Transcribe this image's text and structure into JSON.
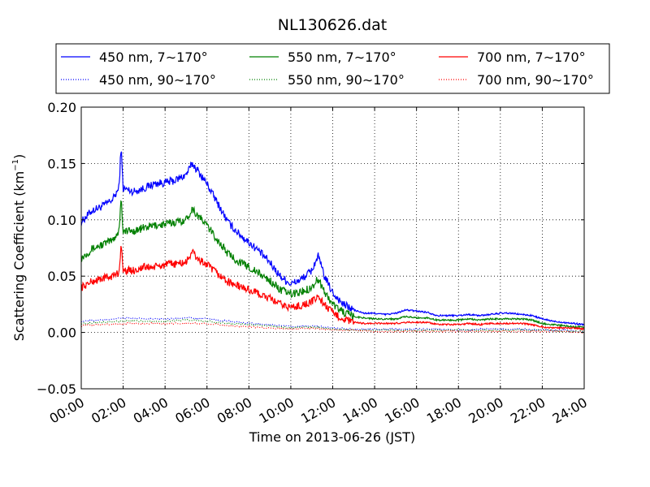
{
  "chart_data": {
    "type": "line",
    "title": "NL130626.dat",
    "xlabel": "Time on 2013-06-26 (JST)",
    "ylabel": "Scattering Coefficient (km",
    "ylabel_sup": "−1",
    "ylabel_close": ")",
    "xlim": [
      0,
      24
    ],
    "ylim": [
      -0.05,
      0.2
    ],
    "grid": true,
    "legend_position": "top",
    "x_tick_labels": [
      "00:00",
      "02:00",
      "04:00",
      "06:00",
      "08:00",
      "10:00",
      "12:00",
      "14:00",
      "16:00",
      "18:00",
      "20:00",
      "22:00",
      "24:00"
    ],
    "y_ticks": [
      -0.05,
      0.0,
      0.05,
      0.1,
      0.15,
      0.2
    ],
    "y_tick_labels": [
      "−0.05",
      "0.00",
      "0.05",
      "0.10",
      "0.15",
      "0.20"
    ],
    "series": [
      {
        "name": "450 nm, 7∼170°",
        "color": "#0000ff",
        "style": "solid",
        "x": [
          0,
          0.5,
          1,
          1.5,
          1.8,
          1.9,
          2,
          2.5,
          3,
          3.5,
          4,
          4.5,
          5,
          5.3,
          5.5,
          6,
          6.5,
          7,
          7.5,
          8,
          8.5,
          9,
          9.5,
          10,
          10.5,
          11,
          11.3,
          11.6,
          12,
          12.5,
          13,
          13.5,
          14,
          14.5,
          15,
          15.5,
          16,
          16.5,
          17,
          17.5,
          18,
          18.5,
          19,
          19.5,
          20,
          20.5,
          21,
          21.5,
          22,
          22.5,
          23,
          23.5,
          24
        ],
        "y": [
          0.098,
          0.108,
          0.112,
          0.118,
          0.128,
          0.165,
          0.128,
          0.125,
          0.128,
          0.132,
          0.133,
          0.135,
          0.14,
          0.15,
          0.145,
          0.132,
          0.115,
          0.098,
          0.088,
          0.08,
          0.072,
          0.062,
          0.05,
          0.043,
          0.047,
          0.055,
          0.068,
          0.05,
          0.035,
          0.025,
          0.02,
          0.017,
          0.017,
          0.016,
          0.017,
          0.02,
          0.019,
          0.018,
          0.015,
          0.015,
          0.015,
          0.016,
          0.015,
          0.016,
          0.017,
          0.017,
          0.016,
          0.015,
          0.012,
          0.01,
          0.009,
          0.008,
          0.007
        ]
      },
      {
        "name": "550 nm, 7∼170°",
        "color": "#008000",
        "style": "solid",
        "x": [
          0,
          0.5,
          1,
          1.5,
          1.8,
          1.9,
          2,
          2.5,
          3,
          3.5,
          4,
          4.5,
          5,
          5.3,
          5.5,
          6,
          6.5,
          7,
          7.5,
          8,
          8.5,
          9,
          9.5,
          10,
          10.5,
          11,
          11.3,
          11.6,
          12,
          12.5,
          13,
          13.5,
          14,
          14.5,
          15,
          15.5,
          16,
          16.5,
          17,
          17.5,
          18,
          18.5,
          19,
          19.5,
          20,
          20.5,
          21,
          21.5,
          22,
          22.5,
          23,
          23.5,
          24
        ],
        "y": [
          0.066,
          0.074,
          0.078,
          0.082,
          0.09,
          0.12,
          0.09,
          0.09,
          0.093,
          0.095,
          0.096,
          0.098,
          0.1,
          0.11,
          0.105,
          0.095,
          0.082,
          0.07,
          0.063,
          0.058,
          0.052,
          0.046,
          0.038,
          0.034,
          0.036,
          0.04,
          0.048,
          0.036,
          0.025,
          0.018,
          0.014,
          0.013,
          0.012,
          0.012,
          0.012,
          0.014,
          0.013,
          0.013,
          0.011,
          0.011,
          0.011,
          0.012,
          0.011,
          0.012,
          0.012,
          0.012,
          0.012,
          0.011,
          0.008,
          0.007,
          0.006,
          0.005,
          0.005
        ]
      },
      {
        "name": "700 nm, 7∼170°",
        "color": "#ff0000",
        "style": "solid",
        "x": [
          0,
          0.5,
          1,
          1.5,
          1.8,
          1.9,
          2,
          2.5,
          3,
          3.5,
          4,
          4.5,
          5,
          5.3,
          5.5,
          6,
          6.5,
          7,
          7.5,
          8,
          8.5,
          9,
          9.5,
          10,
          10.5,
          11,
          11.3,
          11.6,
          12,
          12.5,
          13,
          13.5,
          14,
          14.5,
          15,
          15.5,
          16,
          16.5,
          17,
          17.5,
          18,
          18.5,
          19,
          19.5,
          20,
          20.5,
          21,
          21.5,
          22,
          22.5,
          23,
          23.5,
          24
        ],
        "y": [
          0.04,
          0.045,
          0.048,
          0.05,
          0.053,
          0.078,
          0.055,
          0.055,
          0.058,
          0.058,
          0.06,
          0.061,
          0.062,
          0.072,
          0.066,
          0.06,
          0.052,
          0.045,
          0.041,
          0.038,
          0.034,
          0.03,
          0.025,
          0.022,
          0.024,
          0.027,
          0.032,
          0.025,
          0.017,
          0.012,
          0.009,
          0.008,
          0.008,
          0.008,
          0.008,
          0.009,
          0.009,
          0.009,
          0.007,
          0.007,
          0.007,
          0.008,
          0.007,
          0.008,
          0.008,
          0.008,
          0.008,
          0.007,
          0.005,
          0.004,
          0.004,
          0.004,
          0.003
        ]
      },
      {
        "name": "450 nm, 90∼170°",
        "color": "#0000ff",
        "style": "dotted",
        "x": [
          0,
          1,
          2,
          3,
          4,
          5,
          6,
          7,
          8,
          9,
          10,
          11,
          12,
          13,
          14,
          15,
          16,
          17,
          18,
          19,
          20,
          21,
          22,
          23,
          24
        ],
        "y": [
          0.01,
          0.011,
          0.013,
          0.012,
          0.012,
          0.013,
          0.012,
          0.01,
          0.008,
          0.007,
          0.005,
          0.006,
          0.004,
          0.003,
          0.003,
          0.003,
          0.003,
          0.003,
          0.002,
          0.003,
          0.003,
          0.003,
          0.002,
          0.002,
          0.001
        ]
      },
      {
        "name": "550 nm, 90∼170°",
        "color": "#008000",
        "style": "dotted",
        "x": [
          0,
          1,
          2,
          3,
          4,
          5,
          6,
          7,
          8,
          9,
          10,
          11,
          12,
          13,
          14,
          15,
          16,
          17,
          18,
          19,
          20,
          21,
          22,
          23,
          24
        ],
        "y": [
          0.008,
          0.009,
          0.01,
          0.01,
          0.01,
          0.011,
          0.01,
          0.008,
          0.007,
          0.006,
          0.004,
          0.005,
          0.003,
          0.002,
          0.002,
          0.002,
          0.002,
          0.002,
          0.002,
          0.002,
          0.002,
          0.002,
          0.002,
          0.001,
          0.001
        ]
      },
      {
        "name": "700 nm, 90∼170°",
        "color": "#ff0000",
        "style": "dotted",
        "x": [
          0,
          1,
          2,
          3,
          4,
          5,
          6,
          7,
          8,
          9,
          10,
          11,
          12,
          13,
          14,
          15,
          16,
          17,
          18,
          19,
          20,
          21,
          22,
          23,
          24
        ],
        "y": [
          0.006,
          0.007,
          0.008,
          0.008,
          0.008,
          0.008,
          0.008,
          0.006,
          0.005,
          0.004,
          0.003,
          0.004,
          0.002,
          0.002,
          0.001,
          0.001,
          0.001,
          0.001,
          0.001,
          0.001,
          0.001,
          0.001,
          0.001,
          0.001,
          0.0
        ]
      }
    ]
  }
}
